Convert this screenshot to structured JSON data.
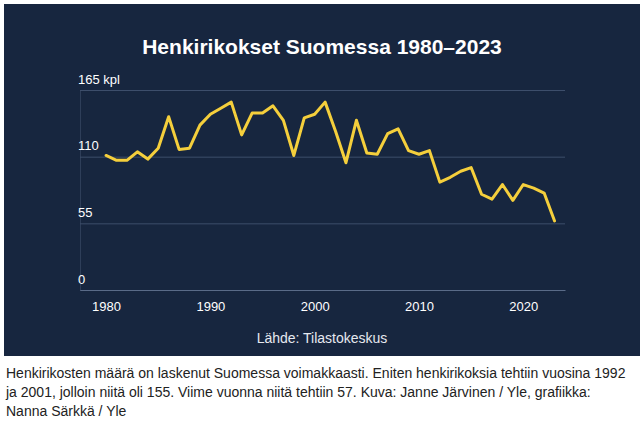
{
  "chart_data": {
    "type": "line",
    "title": "Henkirikokset Suomessa 1980–2023",
    "source": "Lähde: Tilastokeskus",
    "x": [
      1980,
      1981,
      1982,
      1983,
      1984,
      1985,
      1986,
      1987,
      1988,
      1989,
      1990,
      1991,
      1992,
      1993,
      1994,
      1995,
      1996,
      1997,
      1998,
      1999,
      2000,
      2001,
      2002,
      2003,
      2004,
      2005,
      2006,
      2007,
      2008,
      2009,
      2010,
      2011,
      2012,
      2013,
      2014,
      2015,
      2016,
      2017,
      2018,
      2019,
      2020,
      2021,
      2022,
      2023
    ],
    "values": [
      111,
      107,
      107,
      114,
      108,
      117,
      143,
      116,
      117,
      136,
      145,
      150,
      155,
      128,
      146,
      146,
      152,
      140,
      111,
      142,
      145,
      155,
      131,
      105,
      140,
      113,
      112,
      129,
      133,
      115,
      112,
      115,
      89,
      93,
      98,
      101,
      79,
      75,
      87,
      74,
      87,
      84,
      80,
      57
    ],
    "color": "#f5cf3c",
    "xlim": [
      1977.5,
      2024
    ],
    "xticks": [
      1980,
      1990,
      2000,
      2010,
      2020
    ],
    "ylim": [
      0,
      165
    ],
    "yticks": [
      0,
      55,
      110,
      {
        "value": 165,
        "label": "165 kpl"
      }
    ],
    "grid": true
  },
  "caption": "Henkirikosten määrä on laskenut Suomessa voimakkaasti. Eniten henkirikoksia tehtiin vuosina 1992 ja 2001, jolloin niitä oli 155. Viime vuonna niitä tehtiin 57. Kuva: Janne Järvinen / Yle, grafiikka: Nanna Särkkä / Yle"
}
